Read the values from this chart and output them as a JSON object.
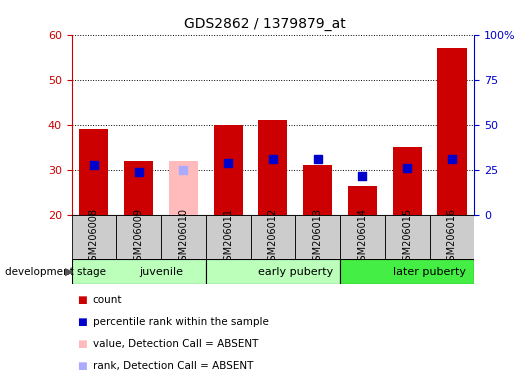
{
  "title": "GDS2862 / 1379879_at",
  "samples": [
    "GSM206008",
    "GSM206009",
    "GSM206010",
    "GSM206011",
    "GSM206012",
    "GSM206013",
    "GSM206014",
    "GSM206015",
    "GSM206016"
  ],
  "bar_values": [
    39,
    32,
    null,
    40,
    41,
    31,
    26.5,
    35,
    57
  ],
  "absent_bar_values": [
    null,
    null,
    32,
    null,
    null,
    null,
    null,
    null,
    null
  ],
  "rank_dots": [
    31.0,
    29.5,
    null,
    31.5,
    32.5,
    32.5,
    28.7,
    30.5,
    32.5
  ],
  "absent_rank_dots": [
    null,
    null,
    30.0,
    null,
    null,
    null,
    null,
    null,
    null
  ],
  "ylim_left": [
    20,
    60
  ],
  "ylim_right": [
    0,
    100
  ],
  "yticks_left": [
    20,
    30,
    40,
    50,
    60
  ],
  "yticks_right": [
    0,
    25,
    50,
    75,
    100
  ],
  "yticklabels_right": [
    "0",
    "25",
    "50",
    "75",
    "100%"
  ],
  "left_axis_color": "#cc0000",
  "right_axis_color": "#0000cc",
  "bar_bottom": 20,
  "bar_width": 0.65,
  "bar_color": "#cc0000",
  "absent_bar_color": "#ffbbbb",
  "dot_color": "#0000cc",
  "absent_dot_color": "#aaaaff",
  "dot_size": 35,
  "groups": [
    {
      "label": "juvenile",
      "start": 0,
      "end": 3,
      "color": "#bbffbb"
    },
    {
      "label": "early puberty",
      "start": 3,
      "end": 6,
      "color": "#bbffbb"
    },
    {
      "label": "later puberty",
      "start": 6,
      "end": 9,
      "color": "#44ee44"
    }
  ],
  "legend_items": [
    {
      "label": "count",
      "color": "#cc0000"
    },
    {
      "label": "percentile rank within the sample",
      "color": "#0000cc"
    },
    {
      "label": "value, Detection Call = ABSENT",
      "color": "#ffbbbb"
    },
    {
      "label": "rank, Detection Call = ABSENT",
      "color": "#aaaaff"
    }
  ],
  "dev_stage_label": "development stage",
  "gray_box_color": "#cccccc"
}
